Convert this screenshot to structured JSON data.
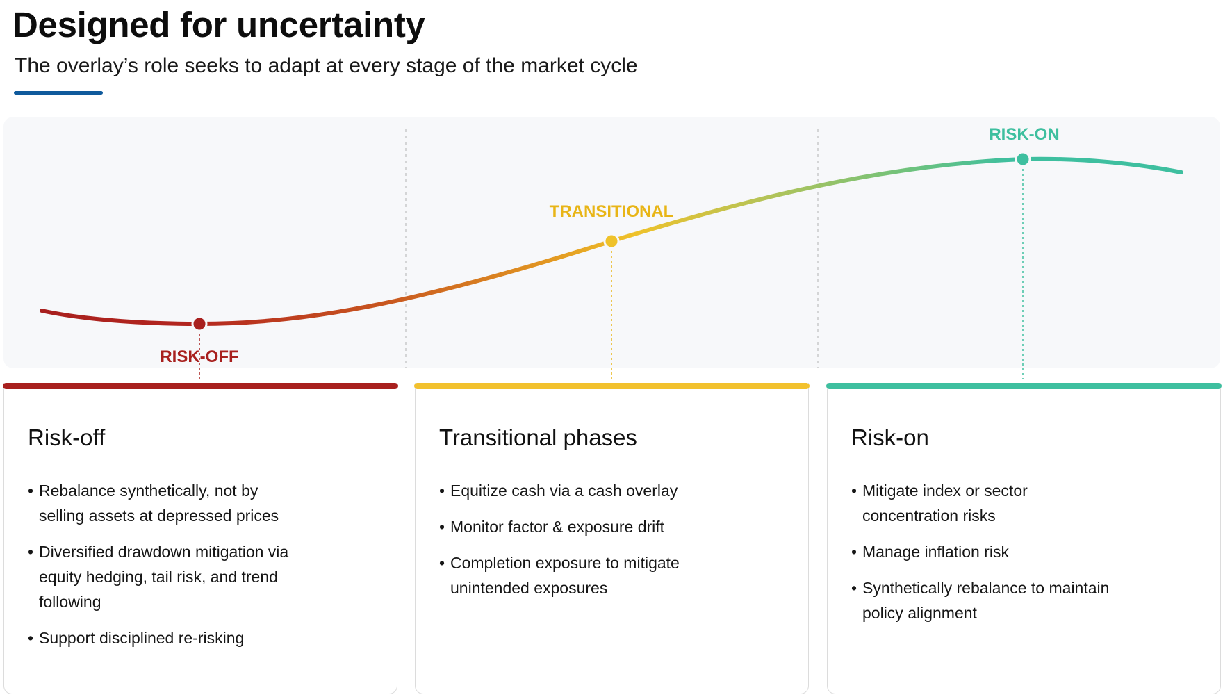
{
  "header": {
    "title": "Designed for uncertainty",
    "subtitle": "The overlay’s role seeks to adapt at every stage of the market cycle"
  },
  "colors": {
    "accent_rule": "#0f5a9c",
    "risk_off": "#a8201e",
    "transitional": "#f2c12e",
    "risk_on": "#3ebf9f",
    "panel_background": "#f7f8fa"
  },
  "diagram": {
    "type": "market-cycle-curve",
    "markers": [
      {
        "label": "RISK-OFF",
        "color": "#a8201e"
      },
      {
        "label": "TRANSITIONAL",
        "color": "#e8b517"
      },
      {
        "label": "RISK-ON",
        "color": "#3ebf9f"
      }
    ]
  },
  "cards": [
    {
      "title": "Risk-off",
      "color": "#a8201e",
      "bullets": [
        "Rebalance synthetically, not by selling assets at depressed prices",
        "Diversified drawdown mitigation via equity hedging, tail risk, and trend following",
        "Support disciplined re-risking"
      ]
    },
    {
      "title": "Transitional phases",
      "color": "#f2c12e",
      "bullets": [
        "Equitize cash via a cash overlay",
        "Monitor factor & exposure drift",
        "Completion exposure to mitigate unintended exposures"
      ]
    },
    {
      "title": "Risk-on",
      "color": "#3ebf9f",
      "bullets": [
        "Mitigate index or sector concentration risks",
        "Manage inflation risk",
        "Synthetically rebalance to maintain policy alignment"
      ]
    }
  ]
}
